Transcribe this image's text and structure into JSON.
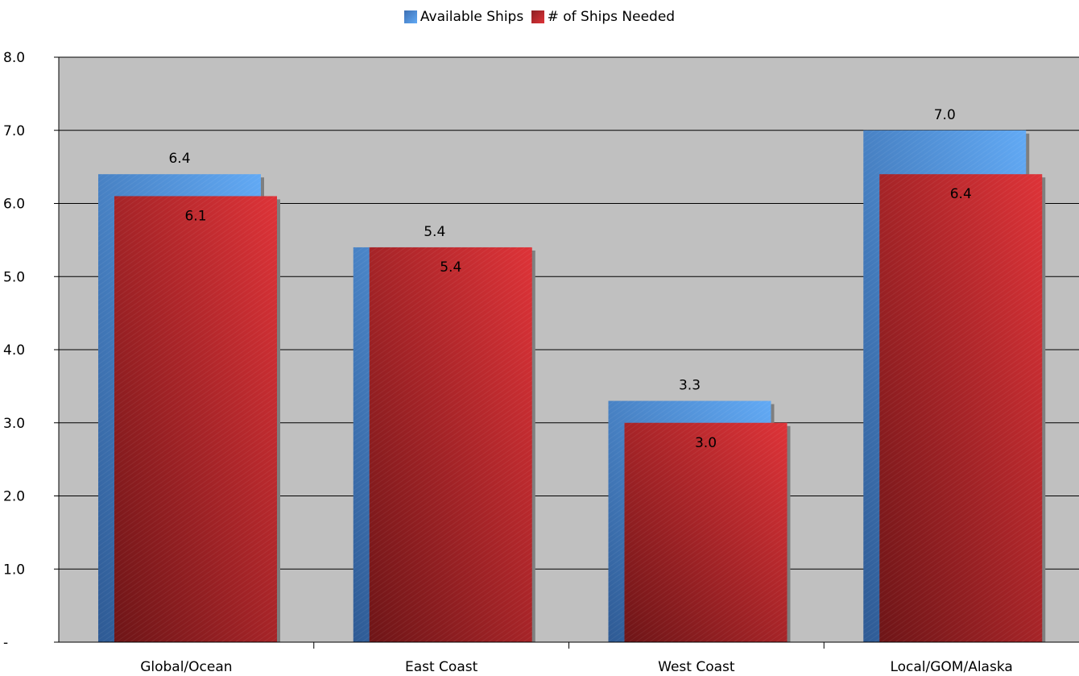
{
  "chart_data": {
    "type": "bar",
    "categories": [
      "Global/Ocean",
      "East Coast",
      "West Coast",
      "Local/GOM/Alaska"
    ],
    "series": [
      {
        "name": "Available Ships",
        "values": [
          6.4,
          5.4,
          3.3,
          7.0
        ],
        "labels": [
          "6.4",
          "5.4",
          "3.3",
          "7.0"
        ]
      },
      {
        "name": "# of Ships Needed",
        "values": [
          6.1,
          5.4,
          3.0,
          6.4
        ],
        "labels": [
          "6.1",
          "5.4",
          "3.0",
          "6.4"
        ]
      }
    ],
    "yticks": [
      "-",
      "1.0",
      "2.0",
      "3.0",
      "4.0",
      "5.0",
      "6.0",
      "7.0",
      "8.0"
    ],
    "ylim": [
      0,
      8
    ],
    "grid": true,
    "legend_position": "top",
    "plot_background": "#c0c0c0",
    "gridline_color": "#000000",
    "colors": {
      "available_light": "#62aaf5",
      "available_dark": "#2e5a94",
      "needed_light": "#de3338",
      "needed_dark": "#6e1517",
      "shadow": "#7f7f7f"
    }
  }
}
